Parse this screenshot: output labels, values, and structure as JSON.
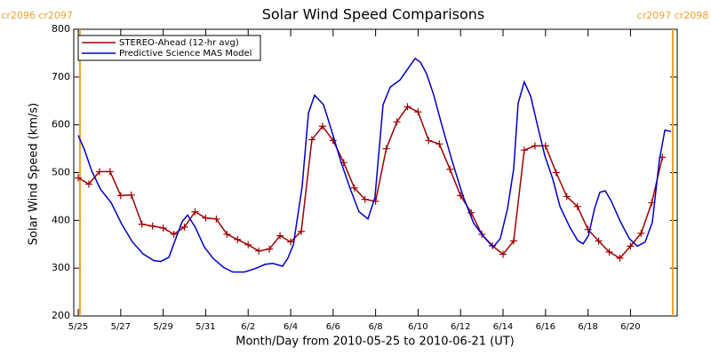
{
  "chart_data": {
    "type": "line",
    "title": "Solar Wind Speed Comparisons",
    "xlabel": "Month/Day from 2010-05-25 to 2010-06-21 (UT)",
    "ylabel": "Solar Wind Speed (km/s)",
    "xlim": [
      -0.21,
      28.2
    ],
    "ylim": [
      200,
      800
    ],
    "yticks": [
      200,
      300,
      400,
      500,
      600,
      700,
      800
    ],
    "xticks": [
      {
        "value": 0,
        "label": "5/25"
      },
      {
        "value": 2,
        "label": "5/27"
      },
      {
        "value": 4,
        "label": "5/29"
      },
      {
        "value": 6,
        "label": "5/31"
      },
      {
        "value": 8,
        "label": "6/2"
      },
      {
        "value": 10,
        "label": "6/4"
      },
      {
        "value": 12,
        "label": "6/6"
      },
      {
        "value": 14,
        "label": "6/8"
      },
      {
        "value": 16,
        "label": "6/10"
      },
      {
        "value": 18,
        "label": "6/12"
      },
      {
        "value": 20,
        "label": "6/14"
      },
      {
        "value": 22,
        "label": "6/16"
      },
      {
        "value": 24,
        "label": "6/18"
      },
      {
        "value": 26,
        "label": "6/20"
      }
    ],
    "legend": "upper left",
    "carrington_markers": [
      {
        "x": 0.08,
        "label": "cr2096 cr2097",
        "color": "#f0a030"
      },
      {
        "x": 27.99,
        "label": "cr2097 cr2098",
        "color": "#f0a030"
      }
    ],
    "series": [
      {
        "name": "STEREO-Ahead (12-hr avg)",
        "color": "#a00000",
        "marker": "+",
        "x": [
          0,
          0.5,
          1,
          1.5,
          2,
          2.5,
          3,
          3.5,
          4,
          4.5,
          5,
          5.5,
          6,
          6.5,
          7,
          7.5,
          8,
          8.5,
          9,
          9.5,
          10,
          10.5,
          11,
          11.5,
          12,
          12.5,
          13,
          13.5,
          14,
          14.5,
          15,
          15.5,
          16,
          16.5,
          17,
          17.5,
          18,
          18.5,
          19,
          19.5,
          20,
          20.5,
          21,
          21.5,
          22,
          22.5,
          23,
          23.5,
          24,
          24.5,
          25,
          25.5,
          26,
          26.5,
          27,
          27.5
        ],
        "values": [
          489,
          476,
          502,
          502,
          452,
          453,
          392,
          388,
          384,
          371,
          386,
          418,
          405,
          403,
          371,
          360,
          349,
          336,
          340,
          368,
          355,
          377,
          569,
          597,
          567,
          521,
          468,
          444,
          440,
          550,
          606,
          638,
          627,
          567,
          560,
          507,
          452,
          416,
          371,
          347,
          329,
          357,
          547,
          556,
          556,
          500,
          450,
          429,
          381,
          357,
          334,
          321,
          346,
          373,
          437,
          532
        ]
      },
      {
        "name": "Predictive Science MAS Model",
        "color": "#0000c8",
        "marker": "none",
        "x": [
          0,
          0.29,
          0.63,
          1.05,
          1.55,
          2.05,
          2.55,
          3.05,
          3.56,
          3.89,
          4.27,
          4.56,
          4.9,
          5.15,
          5.52,
          5.94,
          6.36,
          6.86,
          7.28,
          7.82,
          8.33,
          8.79,
          9.16,
          9.62,
          9.87,
          10.13,
          10.54,
          10.84,
          11.13,
          11.55,
          11.97,
          12.38,
          12.8,
          13.22,
          13.64,
          13.97,
          14.35,
          14.69,
          15.15,
          15.56,
          15.86,
          16.11,
          16.4,
          16.74,
          17.11,
          17.62,
          18.12,
          18.62,
          19.12,
          19.54,
          19.87,
          20.21,
          20.5,
          20.71,
          21,
          21.3,
          21.63,
          21.97,
          22.34,
          22.68,
          23.14,
          23.51,
          23.77,
          24.02,
          24.31,
          24.56,
          24.81,
          25.1,
          25.52,
          25.94,
          26.32,
          26.69,
          27.03,
          27.36,
          27.62,
          27.91
        ],
        "values": [
          578,
          548,
          504,
          465,
          437,
          392,
          355,
          330,
          316,
          314,
          323,
          358,
          398,
          411,
          385,
          344,
          320,
          301,
          292,
          292,
          299,
          308,
          310,
          304,
          321,
          349,
          470,
          625,
          662,
          642,
          582,
          521,
          467,
          418,
          403,
          448,
          642,
          679,
          694,
          720,
          739,
          731,
          707,
          662,
          601,
          522,
          450,
          394,
          364,
          344,
          362,
          424,
          508,
          645,
          690,
          660,
          597,
          535,
          487,
          429,
          386,
          358,
          351,
          368,
          425,
          459,
          462,
          440,
          398,
          362,
          346,
          355,
          396,
          526,
          589,
          586
        ]
      }
    ]
  }
}
